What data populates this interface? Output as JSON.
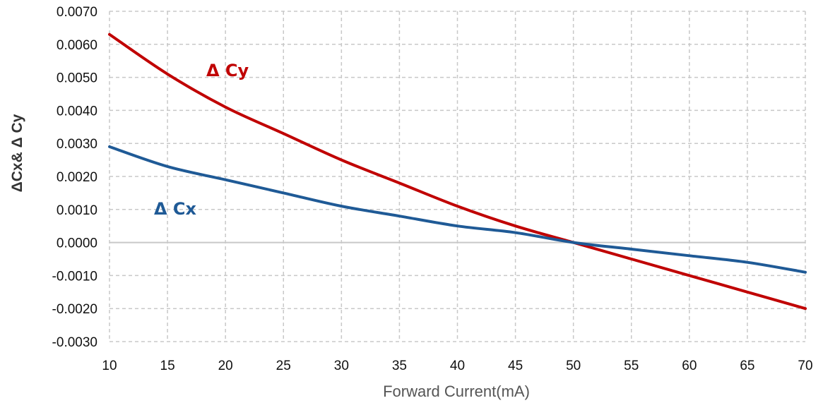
{
  "chart_data": {
    "type": "line",
    "title": "",
    "xlabel": "Forward Current(mA)",
    "ylabel": "ΔCx& Δ Cy",
    "xlim": [
      10,
      70
    ],
    "ylim": [
      -0.003,
      0.007
    ],
    "x_ticks": [
      10,
      15,
      20,
      25,
      30,
      35,
      40,
      45,
      50,
      55,
      60,
      65,
      70
    ],
    "x_tick_labels": [
      "10",
      "15",
      "20",
      "25",
      "30",
      "35",
      "40",
      "45",
      "50",
      "55",
      "60",
      "65",
      "70"
    ],
    "y_ticks": [
      -0.003,
      -0.002,
      -0.001,
      0,
      0.001,
      0.002,
      0.003,
      0.004,
      0.005,
      0.006,
      0.007
    ],
    "y_tick_labels": [
      "-0.0030",
      "-0.0020",
      "-0.0010",
      "0.0000",
      "0.0010",
      "0.0020",
      "0.0030",
      "0.0040",
      "0.0050",
      "0.0060",
      "0.0070"
    ],
    "grid": true,
    "legend": "none",
    "x": [
      10,
      15,
      20,
      25,
      30,
      35,
      40,
      45,
      50,
      55,
      60,
      65,
      70
    ],
    "series": [
      {
        "name": "Δ Cy",
        "color": "#c00000",
        "values": [
          0.0063,
          0.0051,
          0.0041,
          0.0033,
          0.0025,
          0.0018,
          0.0011,
          0.0005,
          0.0,
          -0.0005,
          -0.001,
          -0.0015,
          -0.002
        ]
      },
      {
        "name": "Δ Cx",
        "color": "#1f5a96",
        "values": [
          0.0029,
          0.0023,
          0.0019,
          0.0015,
          0.0011,
          0.0008,
          0.0005,
          0.0003,
          0.0,
          -0.0002,
          -0.0004,
          -0.0006,
          -0.0009
        ]
      }
    ]
  }
}
